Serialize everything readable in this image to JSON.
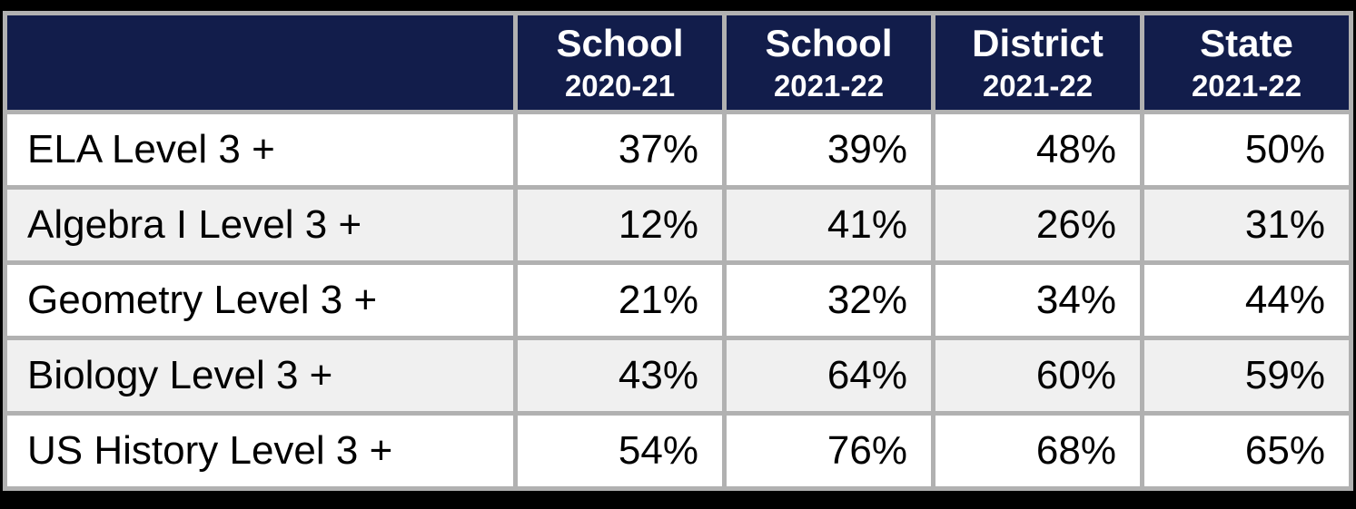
{
  "chart_data": {
    "type": "table",
    "columns": [
      {
        "label": "",
        "sublabel": ""
      },
      {
        "label": "School",
        "sublabel": "2020-21"
      },
      {
        "label": "School",
        "sublabel": "2021-22"
      },
      {
        "label": "District",
        "sublabel": "2021-22"
      },
      {
        "label": "State",
        "sublabel": "2021-22"
      }
    ],
    "rows": [
      {
        "label": "ELA Level 3 +",
        "values": [
          "37%",
          "39%",
          "48%",
          "50%"
        ]
      },
      {
        "label": "Algebra I Level 3 +",
        "values": [
          "12%",
          "41%",
          "26%",
          "31%"
        ]
      },
      {
        "label": "Geometry Level 3 +",
        "values": [
          "21%",
          "32%",
          "34%",
          "44%"
        ]
      },
      {
        "label": "Biology Level 3 +",
        "values": [
          "43%",
          "64%",
          "60%",
          "59%"
        ]
      },
      {
        "label": "US History Level 3 +",
        "values": [
          "54%",
          "76%",
          "68%",
          "65%"
        ]
      }
    ],
    "layout": {
      "legend": "none",
      "grid": "on",
      "row_striping": "white / light-gray alternating",
      "value_alignment": "right"
    }
  },
  "colors": {
    "header_bg": "#121d4b",
    "header_text": "#ffffff",
    "row_bg_odd": "#ffffff",
    "row_bg_even": "#f0f0f0",
    "grid_border": "#b1b1b1",
    "outer_background": "#000000",
    "body_text": "#000000"
  }
}
